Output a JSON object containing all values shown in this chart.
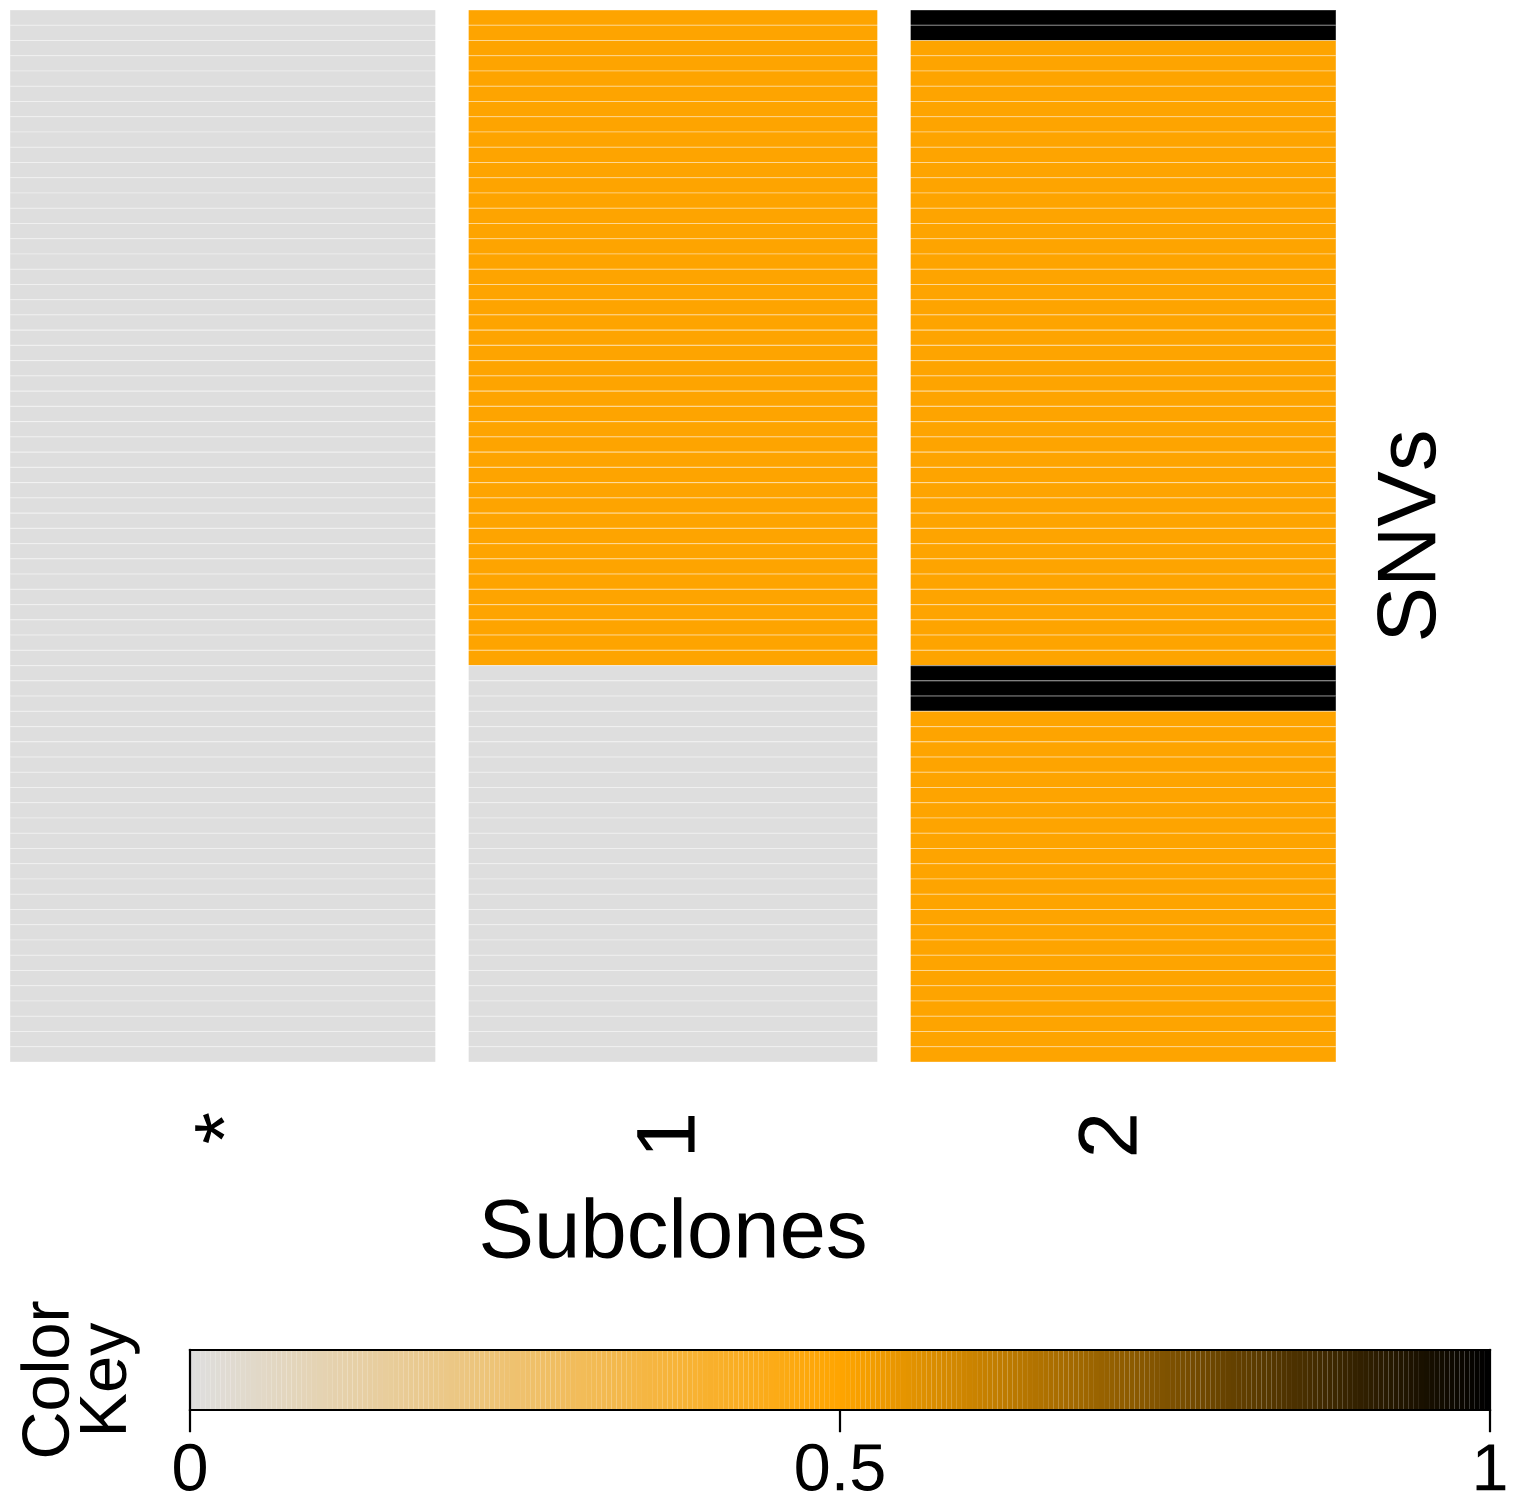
{
  "chart_data": {
    "type": "heatmap",
    "xlabel": "Subclones",
    "ylabel": "SNVs",
    "clabel": "Color Key",
    "categories": [
      "*",
      "1",
      "2"
    ],
    "y_categories": [
      null,
      null,
      null,
      null,
      null,
      null,
      null,
      null,
      null,
      null,
      null,
      null,
      null,
      null,
      null,
      null,
      null,
      null,
      null,
      null,
      null,
      null,
      null,
      null,
      null,
      null,
      null,
      null,
      null,
      null,
      null,
      null,
      null,
      null,
      null,
      null,
      null,
      null,
      null,
      null,
      null,
      null,
      null,
      null,
      null,
      null,
      null,
      null,
      null,
      null,
      null,
      null,
      null,
      null,
      null,
      null,
      null,
      null,
      null,
      null,
      null,
      null,
      null,
      null,
      null,
      null,
      null,
      null,
      null
    ],
    "cells": [
      [
        0,
        0.5,
        1
      ],
      [
        0,
        0.5,
        1
      ],
      [
        0,
        0.5,
        0.5
      ],
      [
        0,
        0.5,
        0.5
      ],
      [
        0,
        0.5,
        0.5
      ],
      [
        0,
        0.5,
        0.5
      ],
      [
        0,
        0.5,
        0.5
      ],
      [
        0,
        0.5,
        0.5
      ],
      [
        0,
        0.5,
        0.5
      ],
      [
        0,
        0.5,
        0.5
      ],
      [
        0,
        0.5,
        0.5
      ],
      [
        0,
        0.5,
        0.5
      ],
      [
        0,
        0.5,
        0.5
      ],
      [
        0,
        0.5,
        0.5
      ],
      [
        0,
        0.5,
        0.5
      ],
      [
        0,
        0.5,
        0.5
      ],
      [
        0,
        0.5,
        0.5
      ],
      [
        0,
        0.5,
        0.5
      ],
      [
        0,
        0.5,
        0.5
      ],
      [
        0,
        0.5,
        0.5
      ],
      [
        0,
        0.5,
        0.5
      ],
      [
        0,
        0.5,
        0.5
      ],
      [
        0,
        0.5,
        0.5
      ],
      [
        0,
        0.5,
        0.5
      ],
      [
        0,
        0.5,
        0.5
      ],
      [
        0,
        0.5,
        0.5
      ],
      [
        0,
        0.5,
        0.5
      ],
      [
        0,
        0.5,
        0.5
      ],
      [
        0,
        0.5,
        0.5
      ],
      [
        0,
        0.5,
        0.5
      ],
      [
        0,
        0.5,
        0.5
      ],
      [
        0,
        0.5,
        0.5
      ],
      [
        0,
        0.5,
        0.5
      ],
      [
        0,
        0.5,
        0.5
      ],
      [
        0,
        0.5,
        0.5
      ],
      [
        0,
        0.5,
        0.5
      ],
      [
        0,
        0.5,
        0.5
      ],
      [
        0,
        0.5,
        0.5
      ],
      [
        0,
        0.5,
        0.5
      ],
      [
        0,
        0.5,
        0.5
      ],
      [
        0,
        0.5,
        0.5
      ],
      [
        0,
        0.5,
        0.5
      ],
      [
        0,
        0.5,
        0.5
      ],
      [
        0,
        0,
        1
      ],
      [
        0,
        0,
        1
      ],
      [
        0,
        0,
        1
      ],
      [
        0,
        0,
        0.5
      ],
      [
        0,
        0,
        0.5
      ],
      [
        0,
        0,
        0.5
      ],
      [
        0,
        0,
        0.5
      ],
      [
        0,
        0,
        0.5
      ],
      [
        0,
        0,
        0.5
      ],
      [
        0,
        0,
        0.5
      ],
      [
        0,
        0,
        0.5
      ],
      [
        0,
        0,
        0.5
      ],
      [
        0,
        0,
        0.5
      ],
      [
        0,
        0,
        0.5
      ],
      [
        0,
        0,
        0.5
      ],
      [
        0,
        0,
        0.5
      ],
      [
        0,
        0,
        0.5
      ],
      [
        0,
        0,
        0.5
      ],
      [
        0,
        0,
        0.5
      ],
      [
        0,
        0,
        0.5
      ],
      [
        0,
        0,
        0.5
      ],
      [
        0,
        0,
        0.5
      ],
      [
        0,
        0,
        0.5
      ],
      [
        0,
        0,
        0.5
      ],
      [
        0,
        0,
        0.5
      ],
      [
        0,
        0,
        0.5
      ]
    ],
    "colors": [
      "#dedede",
      "#ffa500",
      "#000000"
    ],
    "clim": [
      0,
      1
    ],
    "cticks": [
      0,
      0.5,
      1
    ]
  }
}
